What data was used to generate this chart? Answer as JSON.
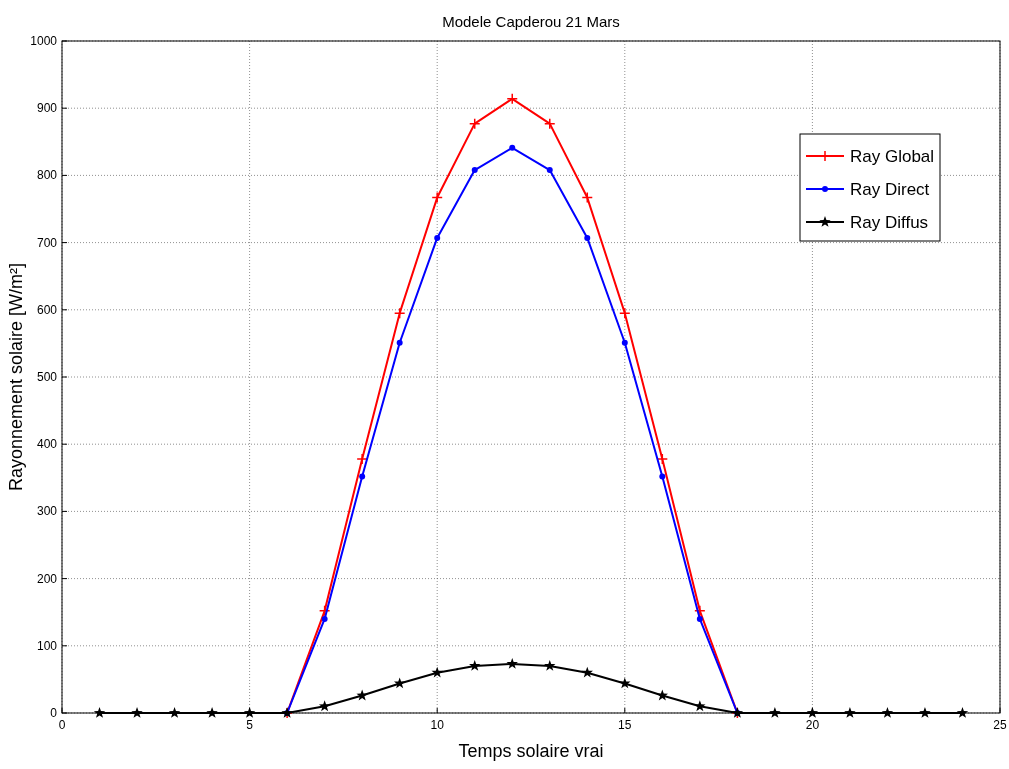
{
  "chart_data": {
    "type": "line",
    "title": "Modele Capderou 21 Mars",
    "xlabel": "Temps solaire vrai",
    "ylabel": "Rayonnement solaire [W/m²]",
    "x": [
      1,
      2,
      3,
      4,
      5,
      6,
      7,
      8,
      9,
      10,
      11,
      12,
      13,
      14,
      15,
      16,
      17,
      18,
      19,
      20,
      21,
      22,
      23,
      24
    ],
    "series": [
      {
        "name": "Ray Global",
        "color": "#ff0000",
        "marker": "cross",
        "values": [
          null,
          null,
          null,
          null,
          null,
          0,
          152,
          378,
          595,
          767,
          877,
          914,
          877,
          767,
          595,
          378,
          152,
          0,
          null,
          null,
          null,
          null,
          null,
          null
        ]
      },
      {
        "name": "Ray Direct",
        "color": "#0000ff",
        "marker": "circle",
        "values": [
          null,
          null,
          null,
          null,
          null,
          0,
          140,
          352,
          551,
          707,
          808,
          841,
          808,
          707,
          551,
          352,
          140,
          0,
          null,
          null,
          null,
          null,
          null,
          null
        ]
      },
      {
        "name": "Ray Diffus",
        "color": "#000000",
        "marker": "star",
        "values": [
          0,
          0,
          0,
          0,
          0,
          0,
          10,
          26,
          44,
          60,
          70,
          73,
          70,
          60,
          44,
          26,
          10,
          0,
          0,
          0,
          0,
          0,
          0,
          0
        ]
      }
    ],
    "xlim": [
      0,
      25
    ],
    "xticks": [
      0,
      5,
      10,
      15,
      20,
      25
    ],
    "ylim": [
      0,
      1000
    ],
    "yticks": [
      0,
      100,
      200,
      300,
      400,
      500,
      600,
      700,
      800,
      900,
      1000
    ],
    "grid": true,
    "legend": "top right",
    "line_style": "solid"
  }
}
